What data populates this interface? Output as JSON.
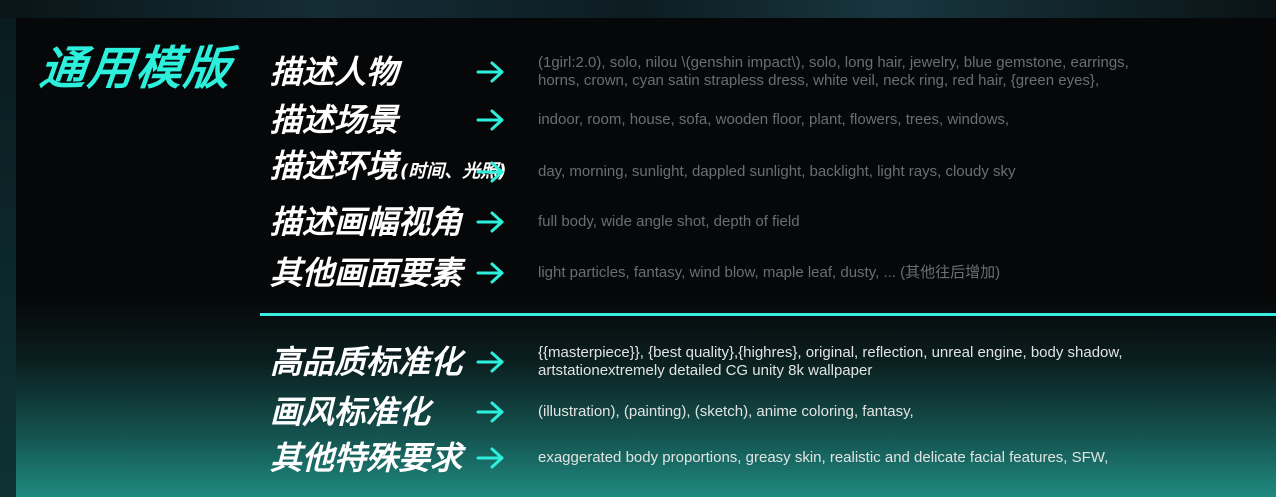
{
  "title": "通用模版",
  "rows_top": [
    {
      "label": "描述人物",
      "note": "",
      "lines": [
        "(1girl:2.0), solo, nilou \\(genshin impact\\), solo, long hair, jewelry, blue gemstone, earrings,",
        "horns, crown, cyan satin strapless dress, white veil, neck ring, red hair, {green eyes},"
      ]
    },
    {
      "label": "描述场景",
      "note": "",
      "lines": [
        "indoor, room, house, sofa, wooden floor, plant, flowers, trees, windows,"
      ]
    },
    {
      "label": "描述环境",
      "note": "(时间、光照)",
      "lines": [
        "day, morning, sunlight, dappled sunlight, backlight, light rays, cloudy sky"
      ]
    },
    {
      "label": "描述画幅视角",
      "note": "",
      "lines": [
        "full body, wide angle shot, depth of field"
      ]
    },
    {
      "label": "其他画面要素",
      "note": "",
      "lines": [
        "light particles, fantasy, wind blow, maple leaf, dusty, ... (其他往后增加)"
      ]
    }
  ],
  "rows_bottom": [
    {
      "label": "高品质标准化",
      "lines": [
        "{{masterpiece}}, {best quality},{highres}, original, reflection, unreal engine, body shadow,",
        "artstationextremely detailed CG unity 8k wallpaper"
      ]
    },
    {
      "label": "画风标准化",
      "lines": [
        "(illustration), (painting), (sketch), anime coloring, fantasy,"
      ]
    },
    {
      "label": "其他特殊要求",
      "lines": [
        "exaggerated body proportions, greasy skin, realistic and delicate facial features, SFW,"
      ]
    }
  ],
  "arrow_icon": "right-arrow-icon",
  "colors": {
    "accent": "#2cf0dc",
    "divider": "#3af0e0",
    "label": "#ffffff",
    "desc_dim": "#6b6e70",
    "desc_bright": "#e2e4e4"
  }
}
